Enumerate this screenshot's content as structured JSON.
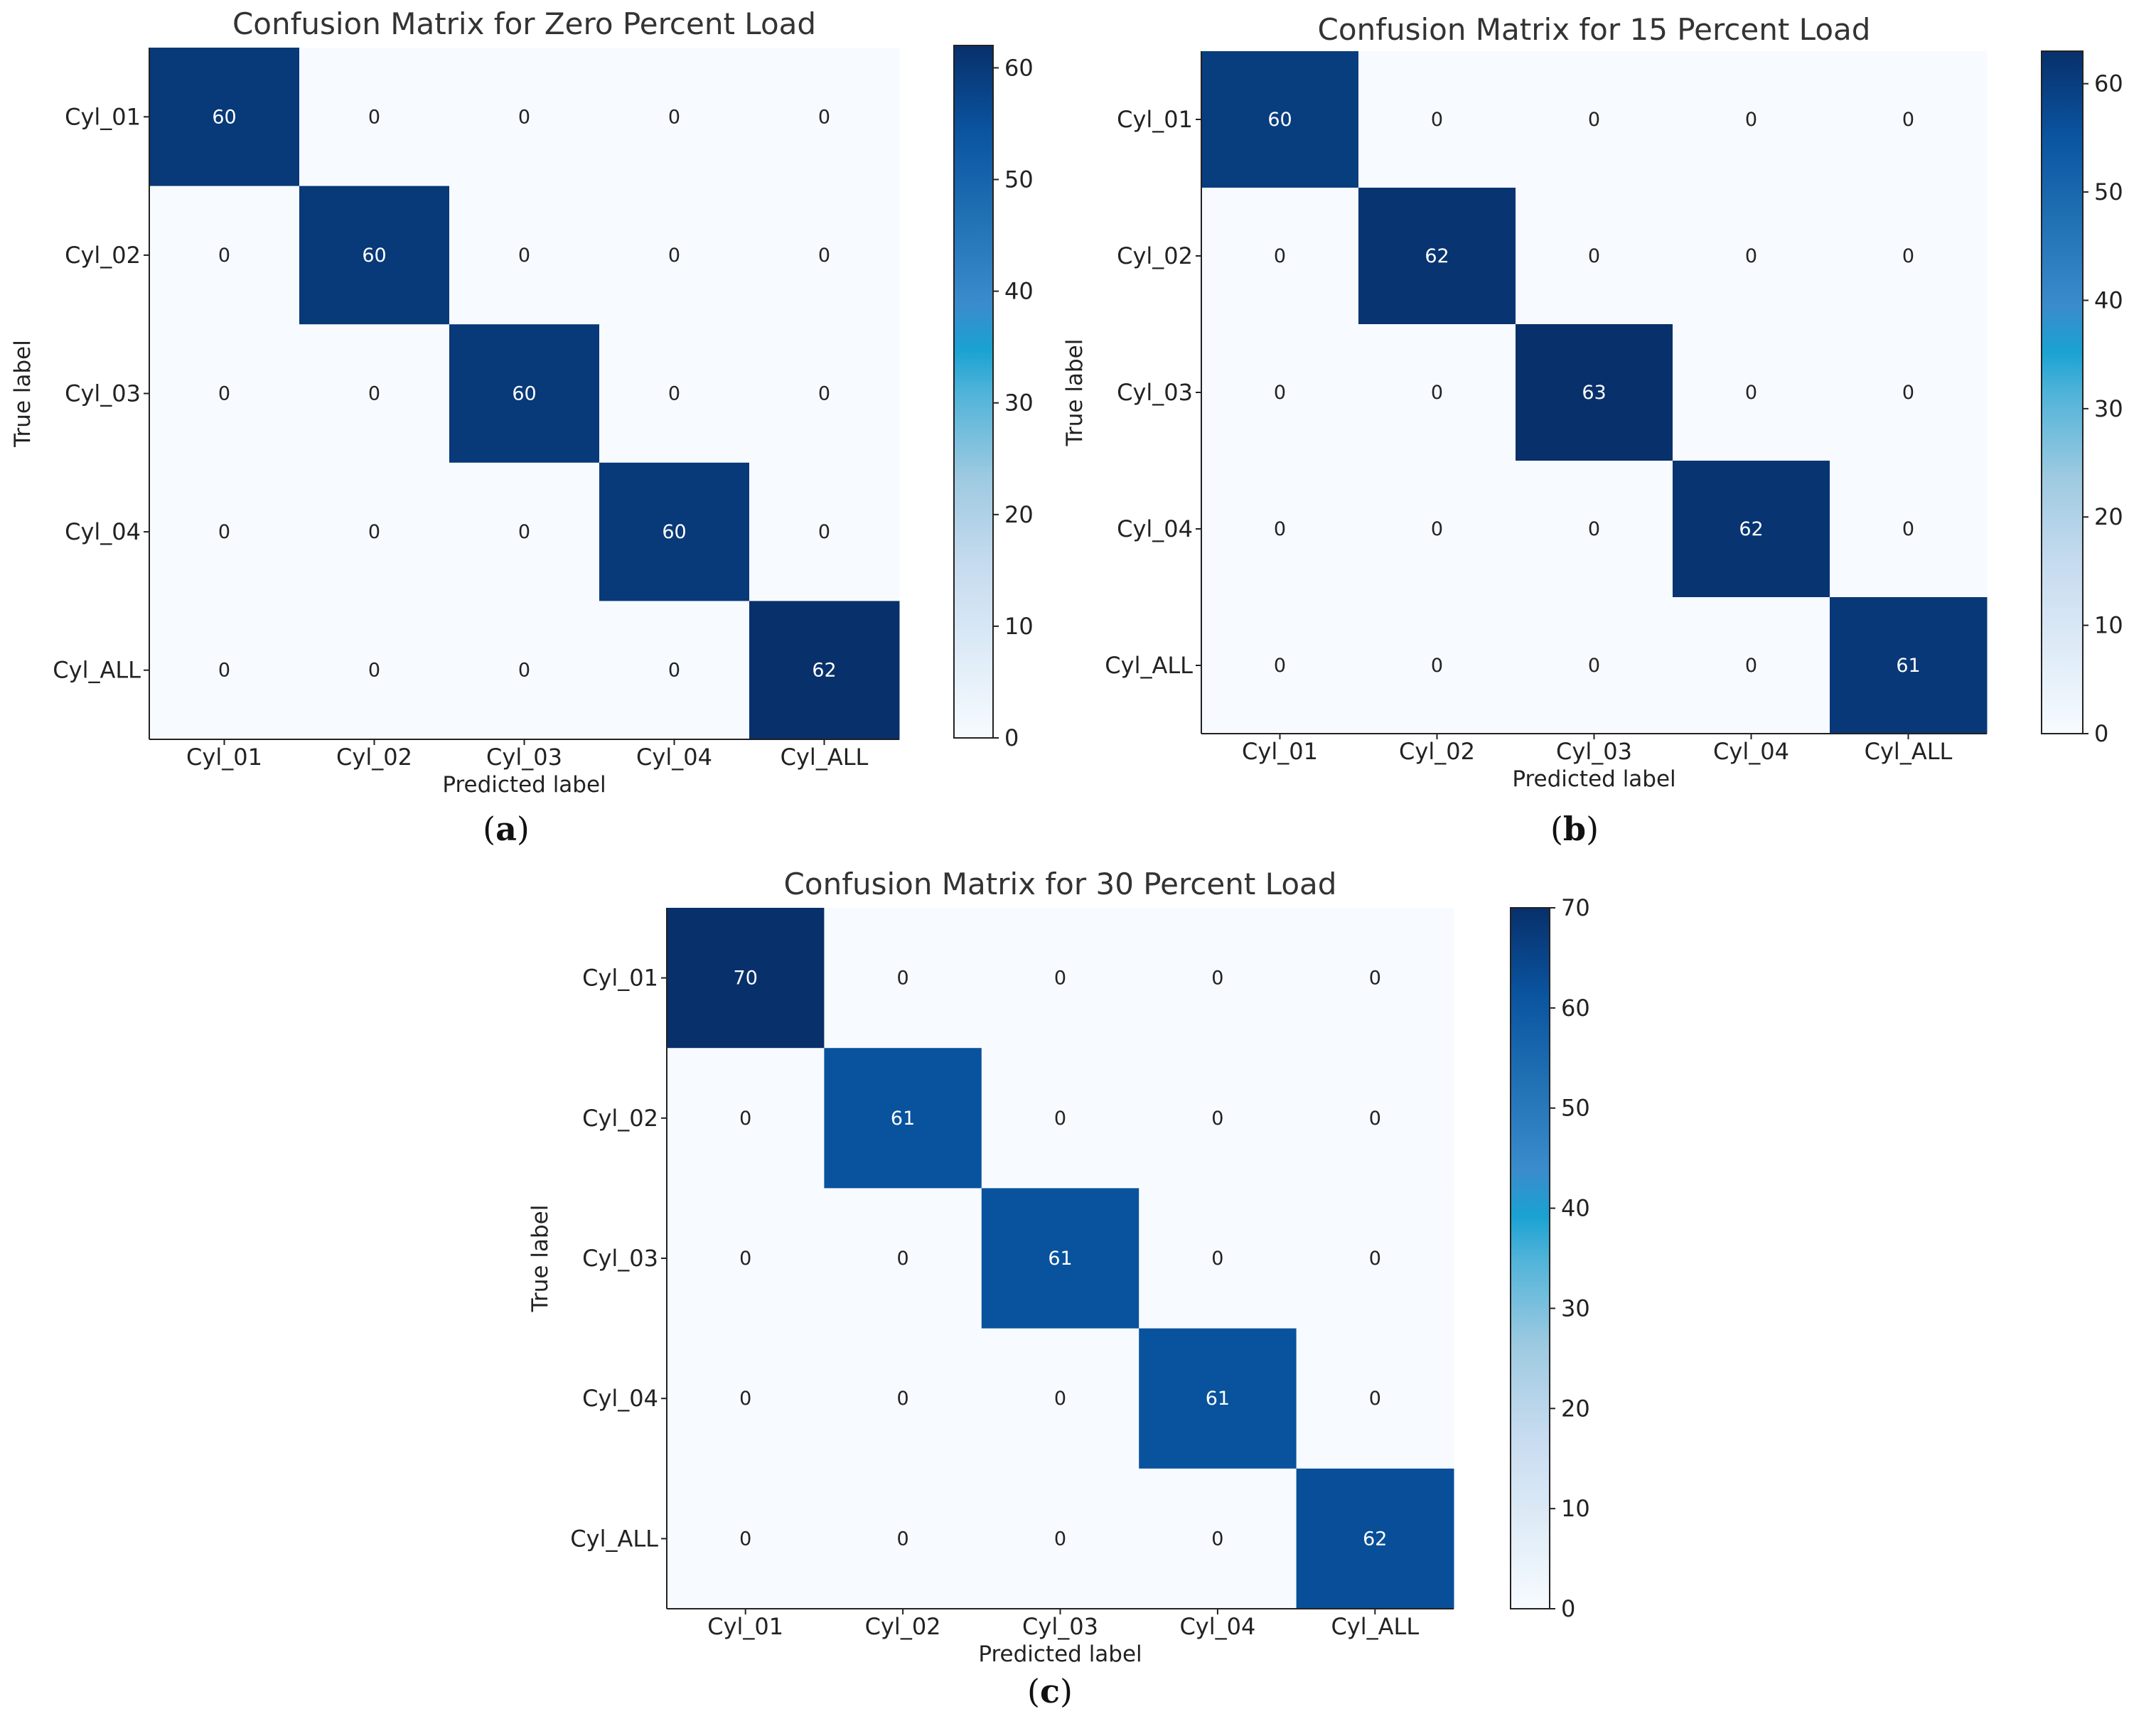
{
  "chart_data": [
    {
      "type": "heatmap",
      "title": "Confusion Matrix for Zero Percent Load",
      "xlabel": "Predicted label",
      "ylabel": "True label",
      "categories": [
        "Cyl_01",
        "Cyl_02",
        "Cyl_03",
        "Cyl_04",
        "Cyl_ALL"
      ],
      "matrix": [
        [
          60,
          0,
          0,
          0,
          0
        ],
        [
          0,
          60,
          0,
          0,
          0
        ],
        [
          0,
          0,
          60,
          0,
          0
        ],
        [
          0,
          0,
          0,
          60,
          0
        ],
        [
          0,
          0,
          0,
          0,
          62
        ]
      ],
      "colormap": "Blues",
      "color_range": [
        0,
        62
      ],
      "colorbar_ticks": [
        0,
        10,
        20,
        30,
        40,
        50,
        60
      ],
      "panel_label": "a"
    },
    {
      "type": "heatmap",
      "title": "Confusion Matrix for 15 Percent Load",
      "xlabel": "Predicted label",
      "ylabel": "True label",
      "categories": [
        "Cyl_01",
        "Cyl_02",
        "Cyl_03",
        "Cyl_04",
        "Cyl_ALL"
      ],
      "matrix": [
        [
          60,
          0,
          0,
          0,
          0
        ],
        [
          0,
          62,
          0,
          0,
          0
        ],
        [
          0,
          0,
          63,
          0,
          0
        ],
        [
          0,
          0,
          0,
          62,
          0
        ],
        [
          0,
          0,
          0,
          0,
          61
        ]
      ],
      "colormap": "Blues",
      "color_range": [
        0,
        63
      ],
      "colorbar_ticks": [
        0,
        10,
        20,
        30,
        40,
        50,
        60
      ],
      "panel_label": "b"
    },
    {
      "type": "heatmap",
      "title": "Confusion Matrix for 30 Percent Load",
      "xlabel": "Predicted label",
      "ylabel": "True label",
      "categories": [
        "Cyl_01",
        "Cyl_02",
        "Cyl_03",
        "Cyl_04",
        "Cyl_ALL"
      ],
      "matrix": [
        [
          70,
          0,
          0,
          0,
          0
        ],
        [
          0,
          61,
          0,
          0,
          0
        ],
        [
          0,
          0,
          61,
          0,
          0
        ],
        [
          0,
          0,
          0,
          61,
          0
        ],
        [
          0,
          0,
          0,
          0,
          62
        ]
      ],
      "colormap": "Blues",
      "color_range": [
        0,
        70
      ],
      "colorbar_ticks": [
        0,
        10,
        20,
        30,
        40,
        50,
        60,
        70
      ],
      "panel_label": "c"
    }
  ]
}
